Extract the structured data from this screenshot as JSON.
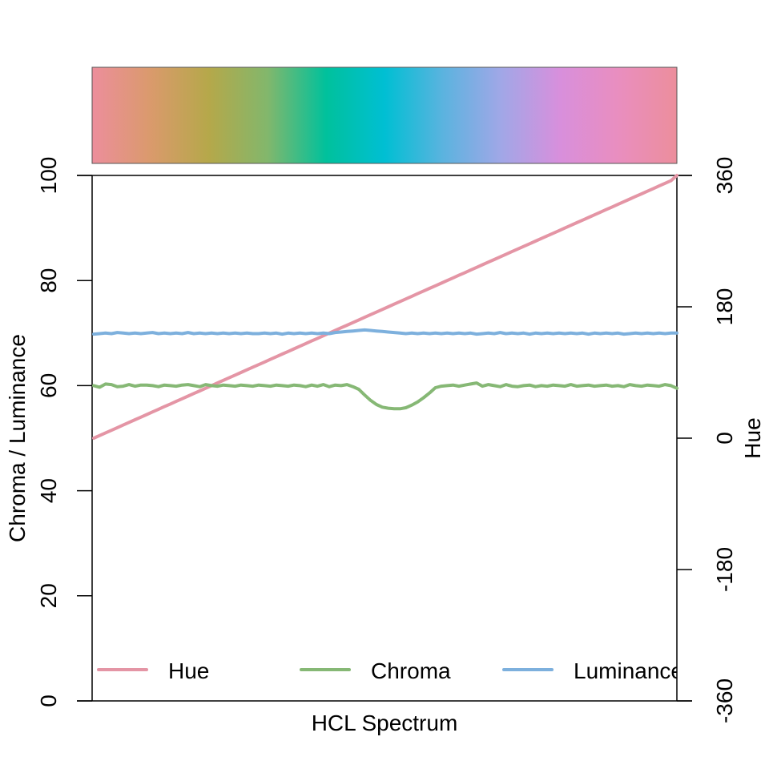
{
  "chart_data": {
    "type": "line",
    "xlabel": "HCL Spectrum",
    "ylabel_left": "Chroma / Luminance",
    "ylabel_right": "Hue",
    "ylim_left": [
      0,
      100
    ],
    "ylim_right": [
      -360,
      360
    ],
    "yticks_left": [
      "0",
      "20",
      "40",
      "60",
      "80",
      "100"
    ],
    "yticks_right": [
      "-360",
      "-180",
      "0",
      "180",
      "360"
    ],
    "grid": false,
    "legend_position": "bottom",
    "n_points": 100,
    "spectrum_colors": [
      "#EC8E9C",
      "#DA9A6C",
      "#B5A84A",
      "#82B76C",
      "#00C19C",
      "#00BFD3",
      "#5BB3DF",
      "#A1A7E7",
      "#D88FDC",
      "#E98EBF",
      "#EC8E9C"
    ],
    "series": [
      {
        "name": "Hue",
        "axis": "right",
        "color": "#E495A5",
        "values": [
          0,
          3.6,
          7.2,
          10.8,
          14.4,
          18,
          21.6,
          25.2,
          28.8,
          32.4,
          36,
          39.6,
          43.2,
          46.8,
          50.4,
          54,
          57.6,
          61.2,
          64.8,
          68.4,
          72,
          75.6,
          79.2,
          82.8,
          86.4,
          90,
          93.6,
          97.2,
          100.8,
          104.4,
          108,
          111.6,
          115.2,
          118.8,
          122.4,
          126,
          129.6,
          133.2,
          136.8,
          140.4,
          144,
          147.6,
          151.2,
          154.8,
          158.4,
          162,
          165.6,
          169.2,
          172.8,
          176.4,
          180,
          183.6,
          187.2,
          190.8,
          194.4,
          198,
          201.6,
          205.2,
          208.8,
          212.4,
          216,
          219.6,
          223.2,
          226.8,
          230.4,
          234,
          237.6,
          241.2,
          244.8,
          248.4,
          252,
          255.6,
          259.2,
          262.8,
          266.4,
          270,
          273.6,
          277.2,
          280.8,
          284.4,
          288,
          291.6,
          295.2,
          298.8,
          302.4,
          306,
          309.6,
          313.2,
          316.8,
          320.4,
          324,
          327.6,
          331.2,
          334.8,
          338.4,
          342,
          345.6,
          349.2,
          352.8,
          360
        ]
      },
      {
        "name": "Chroma",
        "axis": "left",
        "color": "#86B875",
        "values": [
          60,
          59.7,
          60.3,
          60.2,
          59.8,
          59.9,
          60.2,
          59.9,
          60.1,
          60.1,
          60.0,
          59.8,
          60.1,
          60.0,
          59.9,
          60.1,
          60.2,
          60.0,
          59.8,
          60.2,
          60.0,
          59.9,
          60.1,
          60.0,
          59.9,
          60.1,
          60.0,
          59.9,
          60.1,
          60.0,
          59.9,
          60.1,
          60.0,
          59.9,
          60.1,
          60.0,
          59.8,
          60.1,
          59.9,
          60.2,
          59.8,
          60.1,
          60.0,
          60.2,
          59.8,
          59.3,
          58.2,
          57.2,
          56.4,
          55.9,
          55.7,
          55.6,
          55.6,
          55.8,
          56.3,
          56.9,
          57.7,
          58.6,
          59.6,
          59.9,
          60.0,
          60.1,
          59.9,
          60.1,
          60.3,
          60.5,
          59.9,
          60.2,
          60.0,
          59.8,
          60.2,
          59.9,
          59.8,
          60.0,
          60.1,
          59.8,
          60.0,
          59.9,
          60.1,
          60.0,
          59.9,
          60.2,
          59.9,
          60.0,
          60.1,
          59.9,
          60.0,
          60.1,
          59.9,
          60.0,
          59.8,
          60.2,
          60.0,
          59.9,
          60.1,
          60.0,
          59.9,
          60.2,
          60.0,
          59.5
        ]
      },
      {
        "name": "Luminance",
        "axis": "left",
        "color": "#7DB0DD",
        "values": [
          69.8,
          69.9,
          70.0,
          69.9,
          70.1,
          70.0,
          69.9,
          70.0,
          69.9,
          70.0,
          70.1,
          69.9,
          70.0,
          69.9,
          70.0,
          69.9,
          70.1,
          69.9,
          70.0,
          69.9,
          70.0,
          69.9,
          70.0,
          69.9,
          70.0,
          69.9,
          70.0,
          69.9,
          69.9,
          70.0,
          69.9,
          70.0,
          69.8,
          70.0,
          69.9,
          70.0,
          69.9,
          70.0,
          69.9,
          70.0,
          69.9,
          70.1,
          70.2,
          70.3,
          70.4,
          70.5,
          70.6,
          70.5,
          70.4,
          70.3,
          70.2,
          70.1,
          70.0,
          69.9,
          70.0,
          69.9,
          70.0,
          69.9,
          70.0,
          69.9,
          70.0,
          69.9,
          70.0,
          69.9,
          70.0,
          69.8,
          69.9,
          70.0,
          69.9,
          70.1,
          69.9,
          70.0,
          69.9,
          70.0,
          69.8,
          70.0,
          69.9,
          70.0,
          69.9,
          70.0,
          69.9,
          70.0,
          69.9,
          70.0,
          69.8,
          70.0,
          69.9,
          70.0,
          69.9,
          70.0,
          69.8,
          69.9,
          70.0,
          69.9,
          70.0,
          69.9,
          70.0,
          69.9,
          70.0,
          70.0
        ]
      }
    ]
  }
}
